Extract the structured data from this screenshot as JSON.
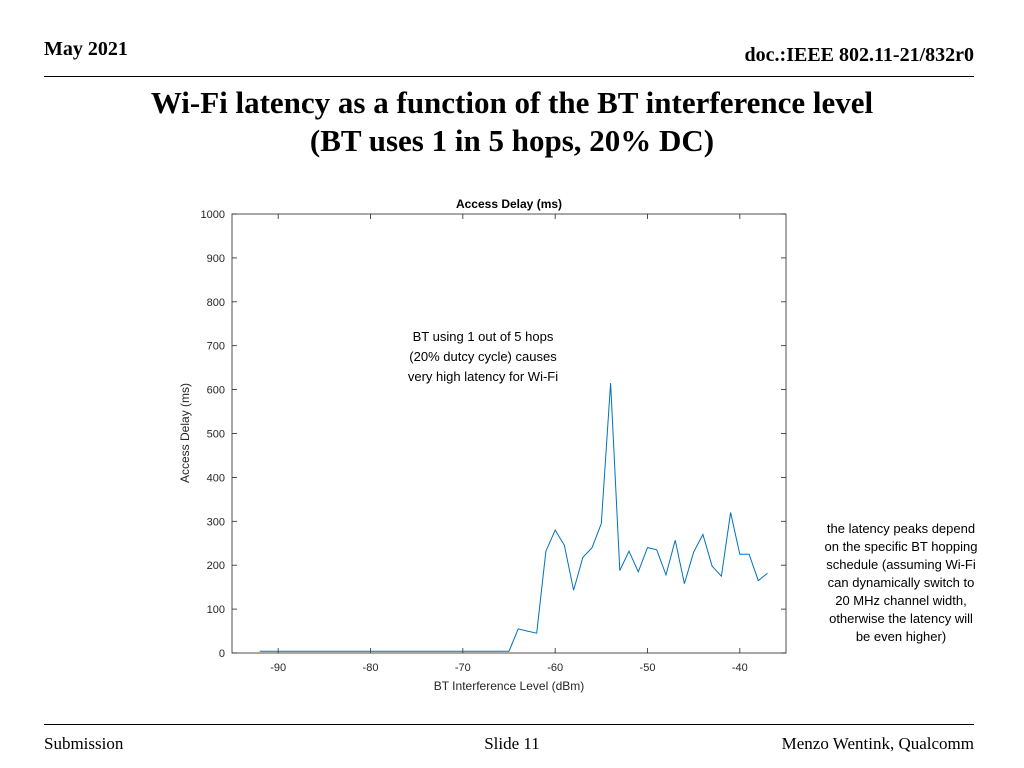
{
  "header": {
    "date": "May 2021",
    "doc_id": "doc.:IEEE 802.11-21/832r0"
  },
  "slide_title": {
    "line1": "Wi-Fi latency as a function of the BT interference level",
    "line2": "(BT uses 1 in 5 hops, 20% DC)"
  },
  "chart_data": {
    "type": "line",
    "title": "Access Delay (ms)",
    "xlabel": "BT Interference Level (dBm)",
    "ylabel": "Access Delay (ms)",
    "xlim": [
      -95,
      -35
    ],
    "ylim": [
      0,
      1000
    ],
    "xticks": [
      -90,
      -80,
      -70,
      -60,
      -50,
      -40
    ],
    "yticks": [
      0,
      100,
      200,
      300,
      400,
      500,
      600,
      700,
      800,
      900,
      1000
    ],
    "series": [
      {
        "name": "Access Delay",
        "color": "#0072BD",
        "x": [
          -92,
          -65,
          -64,
          -63,
          -62,
          -61,
          -60,
          -59,
          -58,
          -57,
          -56,
          -55,
          -54,
          -53,
          -52,
          -51,
          -50,
          -49,
          -48,
          -47,
          -46,
          -45,
          -44,
          -43,
          -42,
          -41,
          -40,
          -39,
          -38,
          -37
        ],
        "y": [
          4,
          4,
          55,
          50,
          45,
          232,
          280,
          245,
          143,
          218,
          240,
          295,
          615,
          188,
          232,
          185,
          240,
          235,
          178,
          257,
          158,
          230,
          270,
          198,
          175,
          320,
          225,
          225,
          165,
          182
        ]
      }
    ],
    "annotation": {
      "lines": [
        "BT using 1 out of 5 hops",
        "(20% dutcy cycle) causes",
        "very high latency for Wi-Fi"
      ]
    }
  },
  "side_note": {
    "lines": [
      "the latency peaks depend",
      "on the specific BT hopping",
      "schedule (assuming Wi-Fi",
      "can dynamically switch to",
      "20 MHz channel width,",
      "otherwise the latency will",
      "be even higher)"
    ]
  },
  "footer": {
    "left": "Submission",
    "center": "Slide 11",
    "right": "Menzo Wentink, Qualcomm"
  }
}
